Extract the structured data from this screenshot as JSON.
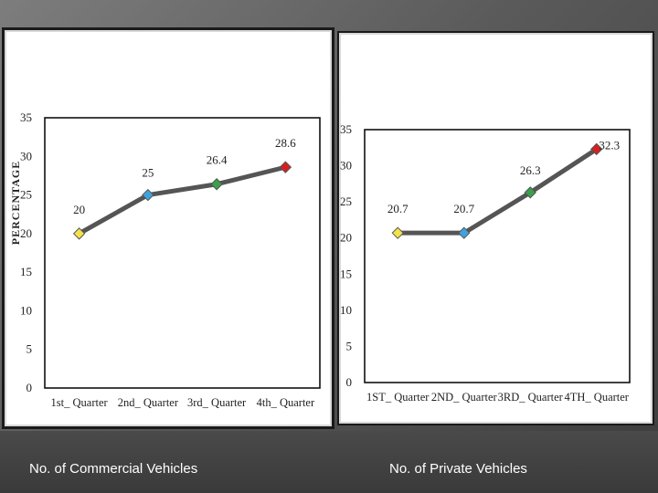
{
  "captions": {
    "left": "No. of Commercial Vehicles",
    "right": "No. of Private Vehicles"
  },
  "chart_data": [
    {
      "type": "line",
      "title": "",
      "ylabel": "PERCENTAGE",
      "xlabel": "",
      "ylim": [
        0,
        35
      ],
      "yticks": [
        0,
        5,
        10,
        15,
        20,
        25,
        30,
        35
      ],
      "categories": [
        "1st_ Quarter",
        "2nd_ Quarter",
        "3rd_ Quarter",
        "4th_ Quarter"
      ],
      "series": [
        {
          "values": [
            20,
            25,
            26.4,
            28.6
          ],
          "data_labels": [
            "20",
            "25",
            "26.4",
            "28.6"
          ]
        }
      ],
      "marker_colors": [
        "#f2e34a",
        "#3fa2dc",
        "#3aa04a",
        "#d62020"
      ],
      "line_color": "#555555",
      "grid": false
    },
    {
      "type": "line",
      "title": "",
      "ylabel": "",
      "xlabel": "",
      "ylim": [
        0,
        35
      ],
      "yticks": [
        0,
        5,
        10,
        15,
        20,
        25,
        30,
        35
      ],
      "categories": [
        "1ST_ Quarter",
        "2ND_ Quarter",
        "3RD_ Quarter",
        "4TH_ Quarter"
      ],
      "series": [
        {
          "values": [
            20.7,
            20.7,
            26.3,
            32.3
          ],
          "data_labels": [
            "20.7",
            "20.7",
            "26.3",
            "32.3"
          ]
        }
      ],
      "marker_colors": [
        "#f2e34a",
        "#3fa2dc",
        "#3aa04a",
        "#d62020"
      ],
      "line_color": "#555555",
      "grid": false
    }
  ]
}
